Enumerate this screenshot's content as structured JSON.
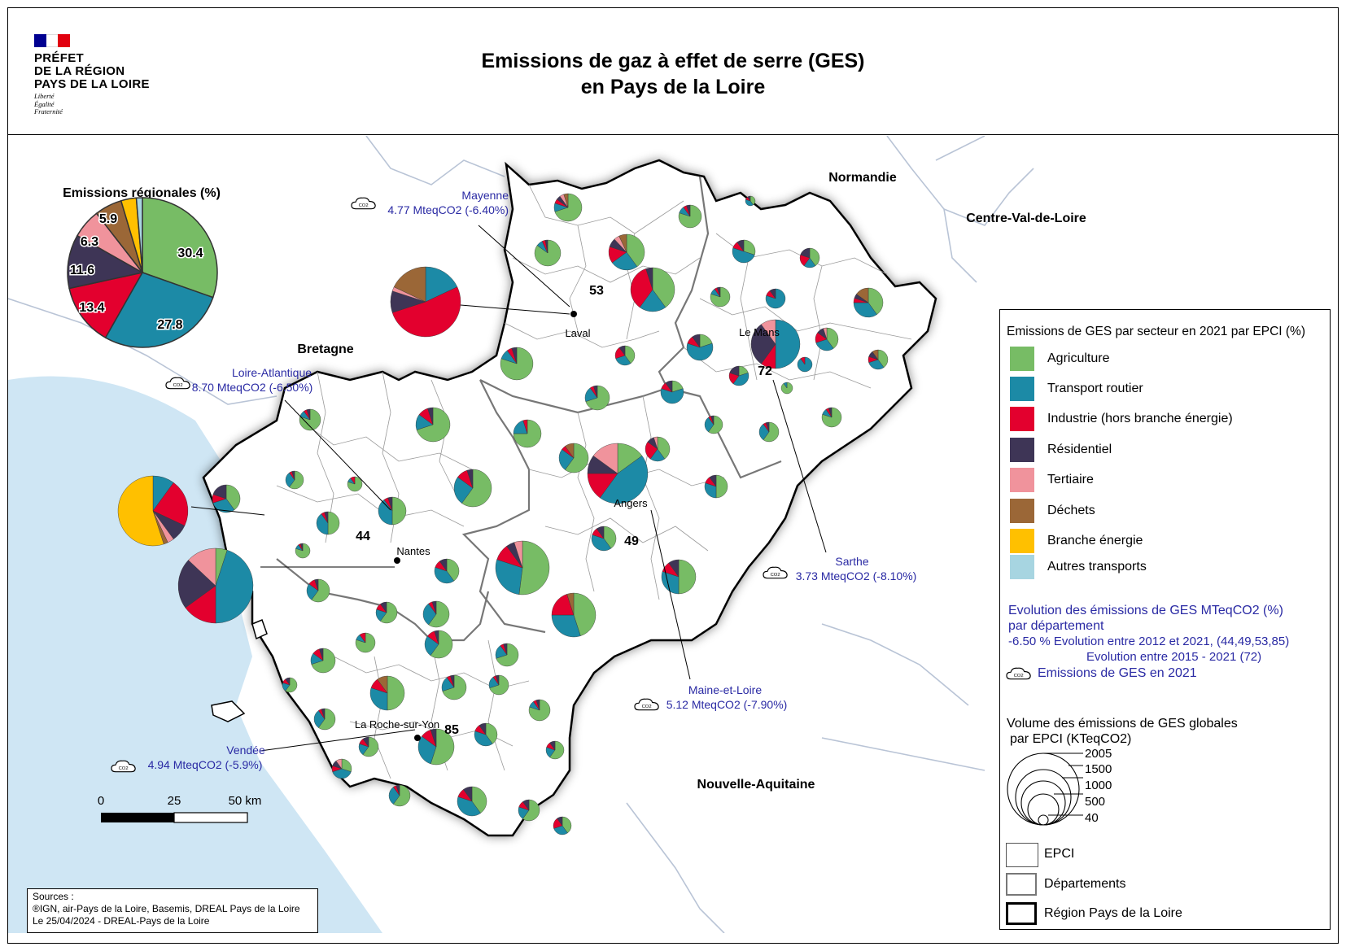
{
  "header": {
    "prefect": [
      "PRÉFET",
      "DE LA RÉGION",
      "PAYS DE LA LOIRE"
    ],
    "motto": [
      "Liberté",
      "Égalité",
      "Fraternité"
    ],
    "title_line1": "Emissions de gaz à effet de serre (GES)",
    "title_line2": "en Pays de la Loire",
    "flag_colors": [
      "#000091",
      "#ffffff",
      "#e1000f"
    ]
  },
  "regional_pie": {
    "title": "Emissions régionales (%)",
    "labels": [
      "30.4",
      "27.8",
      "13.4",
      "11.6",
      "6.3",
      "5.9"
    ]
  },
  "neighbours": {
    "normandie": "Normandie",
    "centre": "Centre-Val-de-Loire",
    "bretagne": "Bretagne",
    "nouvelle_aquitaine": "Nouvelle-Aquitaine"
  },
  "departments": [
    {
      "name": "Mayenne",
      "value": "4.77 MteqCO2 (-6.40%)",
      "code": "53"
    },
    {
      "name": "Loire-Atlantique",
      "value": "8.70 MteqCO2 (-6.50%)",
      "code": "44"
    },
    {
      "name": "Sarthe",
      "value": "3.73 MteqCO2 (-8.10%)",
      "code": "72"
    },
    {
      "name": "Maine-et-Loire",
      "value": "5.12 MteqCO2 (-7.90%)",
      "code": "49"
    },
    {
      "name": "Vendée",
      "value": "4.94 MteqCO2 (-5.9%)",
      "code": "85"
    }
  ],
  "cities": [
    "Laval",
    "Le Mans",
    "Angers",
    "Nantes",
    "La Roche-sur-Yon"
  ],
  "co2_icon_label": "CO2",
  "scale": {
    "labels": [
      "0",
      "25",
      "50 km"
    ]
  },
  "legend": {
    "title": "Emissions de GES par secteur en 2021 par EPCI (%)",
    "sectors": [
      {
        "label": "Agriculture",
        "color": "#77bc65"
      },
      {
        "label": "Transport routier",
        "color": "#1c8aa6"
      },
      {
        "label": "Industrie (hors branche énergie)",
        "color": "#e3002e"
      },
      {
        "label": "Résidentiel",
        "color": "#3e3556"
      },
      {
        "label": "Tertiaire",
        "color": "#f0939c"
      },
      {
        "label": "Déchets",
        "color": "#9b6737"
      },
      {
        "label": "Branche énergie",
        "color": "#ffc000"
      },
      {
        "label": "Autres transports",
        "color": "#a7d5e1"
      }
    ],
    "evolution_title": "Evolution des émissions de GES MTeqCO2 (%)",
    "evolution_subtitle": "par département",
    "evolution_line1": "-6.50 %  Evolution entre 2012 et 2021, (44,49,53,85)",
    "evolution_line2": "Evolution entre  2015 - 2021 (72)",
    "emissions_2021": "Emissions de GES en 2021",
    "volume_title": "Volume des émissions de GES globales",
    "volume_subtitle": "par EPCI (KTeqCO2)",
    "volume_values": [
      "2005",
      "1500",
      "1000",
      "500",
      "40"
    ],
    "epci": "EPCI",
    "departements": "Départements",
    "region": "Région Pays de la Loire"
  },
  "sources": {
    "line1": "Sources :",
    "line2": "®IGN, air-Pays de la Loire, Basemis, DREAL Pays de la Loire",
    "line3": "Le 25/04/2024 - DREAL-Pays de la Loire"
  }
}
